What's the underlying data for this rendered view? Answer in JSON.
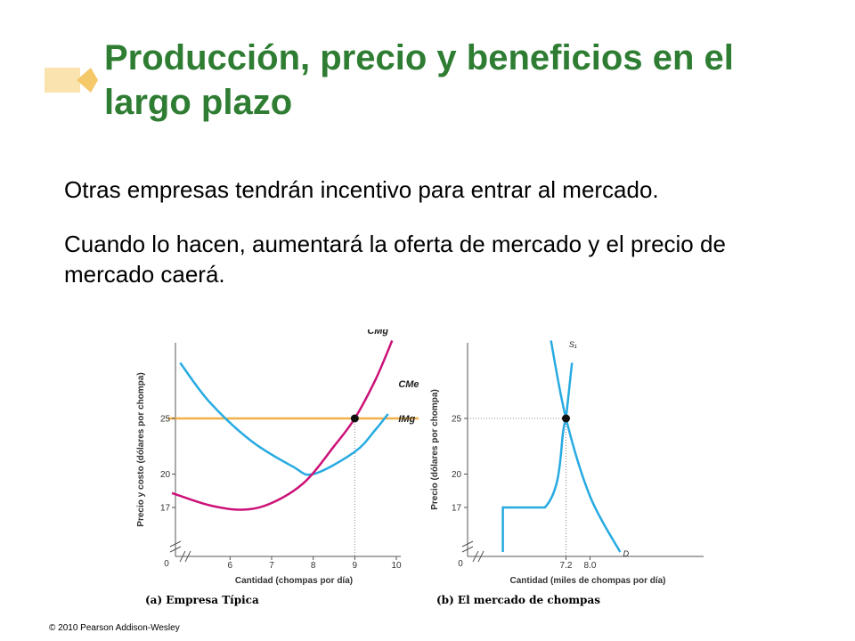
{
  "slide": {
    "title": "Producción, precio y beneficios en el largo plazo",
    "bullets": [
      "Otras empresas tendrán incentivo para entrar al mercado.",
      "Cuando lo hacen, aumentará la oferta de mercado y el precio de mercado caerá."
    ],
    "copyright": "© 2010 Pearson Addison-Wesley",
    "colors": {
      "title": "#2e7d32",
      "accent": "#f5c86a",
      "price_line": "#f0b04a",
      "curves": "#27aae1",
      "marginal_cost": "#cc1177"
    }
  },
  "chart_data": [
    {
      "type": "line",
      "caption": "(a) Empresa Típica",
      "xlabel": "Cantidad (chompas por día)",
      "ylabel": "Precio y costo (dólares por chompa)",
      "origin_label": "0",
      "x_ticks": [
        "6",
        "7",
        "8",
        "9",
        "10"
      ],
      "y_ticks": [
        "25",
        "20",
        "17"
      ],
      "series": [
        {
          "name": "CMg",
          "x": [
            4.6,
            5.5,
            6.3,
            7.0,
            7.8,
            8.5,
            9.0,
            9.5,
            9.9
          ],
          "y": [
            18.3,
            17.2,
            16.8,
            17.4,
            19.3,
            22.5,
            25,
            28.5,
            32
          ]
        },
        {
          "name": "CMe",
          "x": [
            4.8,
            5.5,
            6.5,
            7.5,
            8.0,
            9.0,
            9.5,
            9.8
          ],
          "y": [
            30,
            26.5,
            23,
            20.7,
            20,
            22,
            24,
            25.4
          ]
        },
        {
          "name": "IMg",
          "x": [
            4.5,
            10.8
          ],
          "y": [
            25,
            25
          ]
        }
      ],
      "equilibrium": {
        "x": 9,
        "y": 25
      }
    },
    {
      "type": "line",
      "caption": "(b) El mercado de chompas",
      "xlabel": "Cantidad (miles de chompas por día)",
      "ylabel": "Precio (dólares por chompa)",
      "origin_label": "0",
      "x_ticks": [
        "7.2",
        "8.0"
      ],
      "y_ticks": [
        "25",
        "20",
        "17"
      ],
      "series": [
        {
          "name": "S₁",
          "x": [
            5.1,
            5.1,
            6.5,
            7.2,
            7.4
          ],
          "y": [
            13,
            17,
            17,
            25,
            30
          ]
        },
        {
          "name": "D",
          "x": [
            6.7,
            7.2,
            8.0,
            9.0
          ],
          "y": [
            32,
            25,
            18,
            13
          ]
        }
      ],
      "equilibrium": {
        "x": 7.2,
        "y": 25
      }
    }
  ]
}
